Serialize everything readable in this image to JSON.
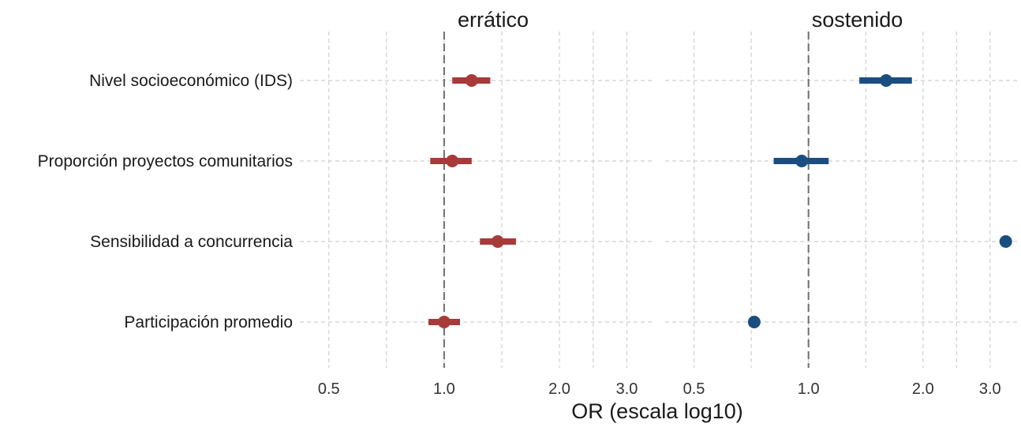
{
  "chart_data": {
    "type": "forest",
    "xlabel": "OR (escala log10)",
    "x_scale": "log10",
    "xlim": [
      0.42,
      3.55
    ],
    "x_ticks": [
      0.5,
      1.0,
      2.0,
      3.0
    ],
    "x_tick_labels": [
      "0.5",
      "1.0",
      "2.0",
      "3.0"
    ],
    "x_minor_ticks": [
      0.7071,
      1.4142,
      2.4495
    ],
    "reference_line": 1.0,
    "grid": true,
    "legend": "none",
    "categories": [
      "Nivel socioeconómico (IDS)",
      "Proporción proyectos comunitarios",
      "Sensibilidad a concurrencia",
      "Participación promedio"
    ],
    "panels": [
      {
        "name": "errático",
        "color": "#a83a3a",
        "estimates": [
          1.18,
          1.05,
          1.38,
          1.0
        ],
        "lower": [
          1.05,
          0.92,
          1.24,
          0.91
        ],
        "upper": [
          1.32,
          1.18,
          1.54,
          1.1
        ]
      },
      {
        "name": "sostenido",
        "color": "#1a4e80",
        "estimates": [
          1.6,
          0.96,
          3.3,
          0.72
        ],
        "lower": [
          1.36,
          0.81,
          3.3,
          0.72
        ],
        "upper": [
          1.87,
          1.13,
          3.3,
          0.72
        ]
      }
    ]
  }
}
